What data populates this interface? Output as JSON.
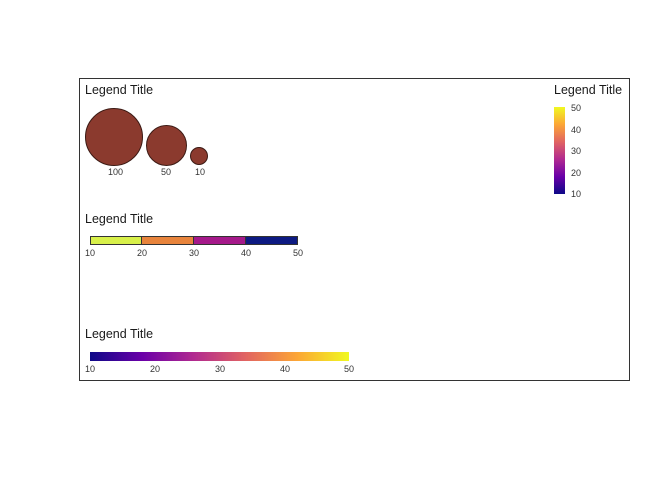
{
  "legends": {
    "size_legend": {
      "title": "Legend Title",
      "fill_color": "#8b3a2e",
      "items": [
        {
          "label": "100",
          "value": 100
        },
        {
          "label": "50",
          "value": 50
        },
        {
          "label": "10",
          "value": 10
        }
      ]
    },
    "vertical_colorbar": {
      "title": "Legend Title",
      "colormap": "plasma",
      "range": [
        10,
        50
      ],
      "ticks": [
        "10",
        "20",
        "30",
        "40",
        "50"
      ]
    },
    "binned_legend": {
      "title": "Legend Title",
      "bins": [
        {
          "from": "10",
          "to": "20",
          "color": "#d8f04a"
        },
        {
          "from": "20",
          "to": "30",
          "color": "#e8843c"
        },
        {
          "from": "30",
          "to": "40",
          "color": "#a5198a"
        },
        {
          "from": "40",
          "to": "50",
          "color": "#0d1a82"
        }
      ],
      "ticks": [
        "10",
        "20",
        "30",
        "40",
        "50"
      ]
    },
    "horizontal_colorbar": {
      "title": "Legend Title",
      "colormap": "plasma",
      "range": [
        10,
        50
      ],
      "ticks": [
        "10",
        "20",
        "30",
        "40",
        "50"
      ]
    }
  },
  "colors": {
    "plasma_stops": [
      "#0d0887",
      "#6a00a8",
      "#b12a90",
      "#e16462",
      "#fca636",
      "#f0f921"
    ]
  }
}
